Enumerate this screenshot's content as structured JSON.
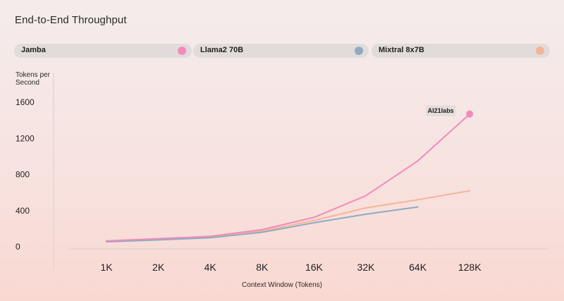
{
  "chart_data": {
    "type": "line",
    "title": "End-to-End Throughput",
    "xlabel": "Context Window (Tokens)",
    "ylabel": "Tokens per Second",
    "categories": [
      "1K",
      "2K",
      "4K",
      "8K",
      "16K",
      "32K",
      "64K",
      "128K"
    ],
    "yticks": [
      0,
      400,
      800,
      1200,
      1600
    ],
    "ylim": [
      0,
      1600
    ],
    "grid": false,
    "legend_position": "top",
    "series": [
      {
        "name": "Jamba",
        "color": "#f08cbc",
        "values": [
          65,
          90,
          115,
          190,
          325,
          565,
          950,
          1470
        ]
      },
      {
        "name": "Llama2 70B",
        "color": "#8eabc4",
        "values": [
          55,
          75,
          100,
          160,
          265,
          360,
          440,
          null
        ]
      },
      {
        "name": "Mixtral 8x7B",
        "color": "#f4b596",
        "values": [
          60,
          80,
          110,
          175,
          290,
          430,
          520,
          620
        ]
      }
    ],
    "annotation": {
      "text": "AI21labs",
      "series": "Jamba",
      "category": "128K"
    }
  }
}
